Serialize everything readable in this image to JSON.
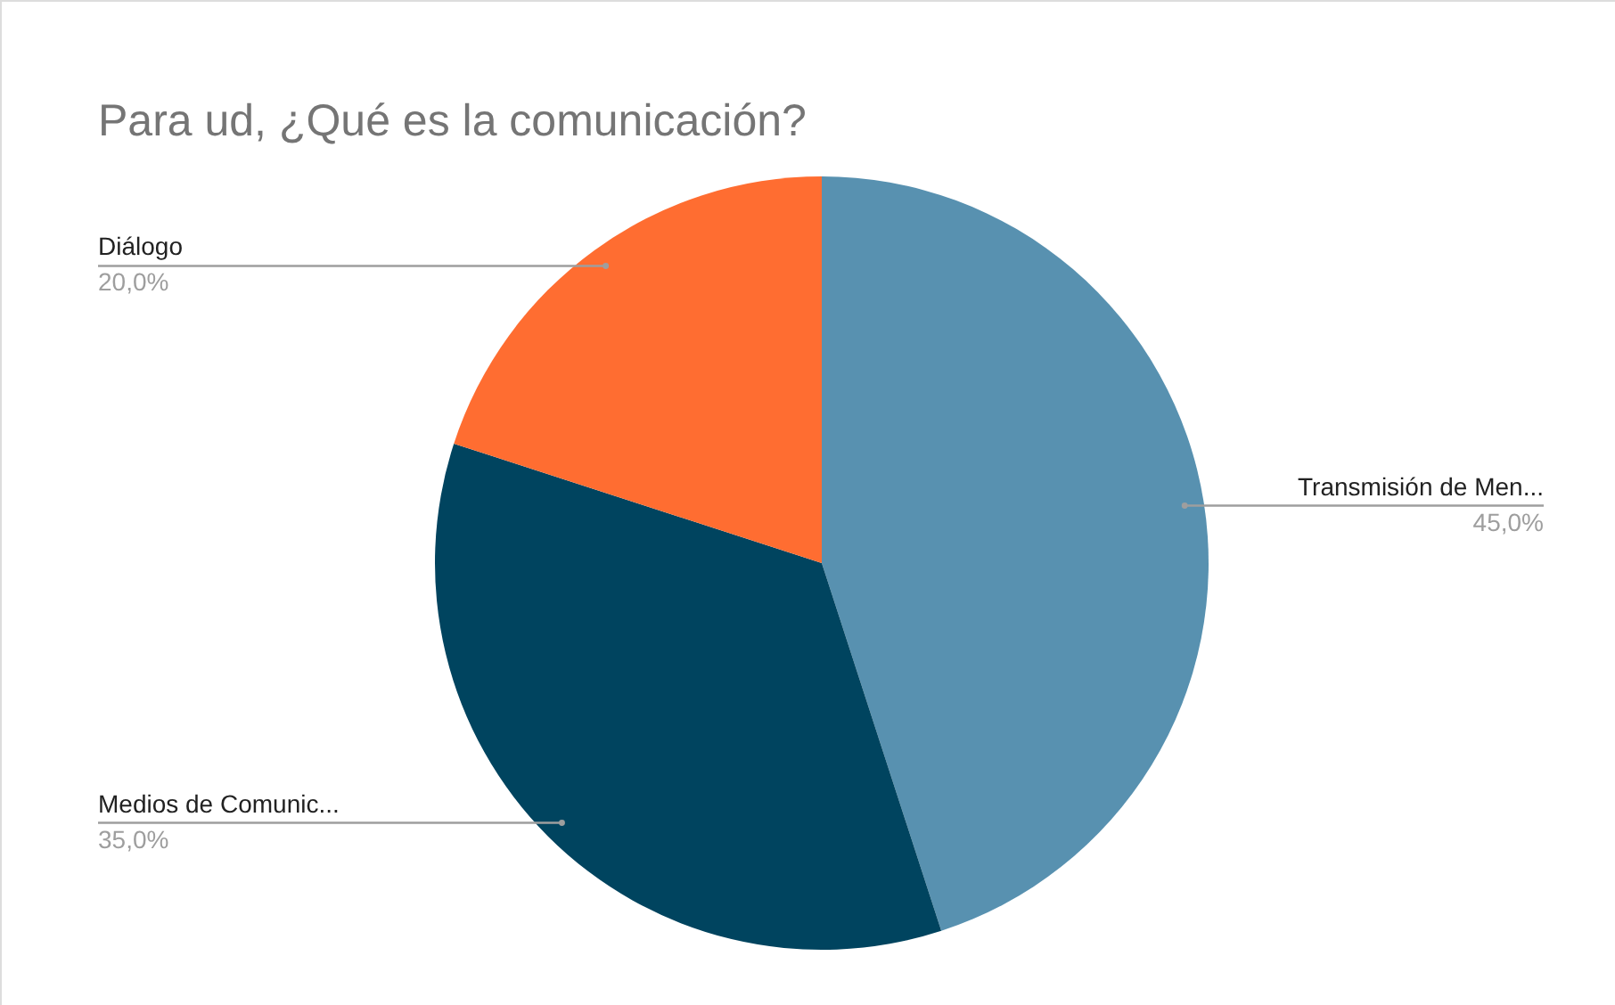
{
  "chart_data": {
    "type": "pie",
    "title": "Para ud, ¿Qué es la comunicación?",
    "categories": [
      "Transmisión de Men...",
      "Medios de Comunic...",
      "Diálogo"
    ],
    "values": [
      45,
      35,
      20
    ],
    "colors": [
      "#5891b0",
      "#00445f",
      "#ff6d31"
    ],
    "value_labels": [
      "45,0%",
      "35,0%",
      "20,0%"
    ]
  }
}
